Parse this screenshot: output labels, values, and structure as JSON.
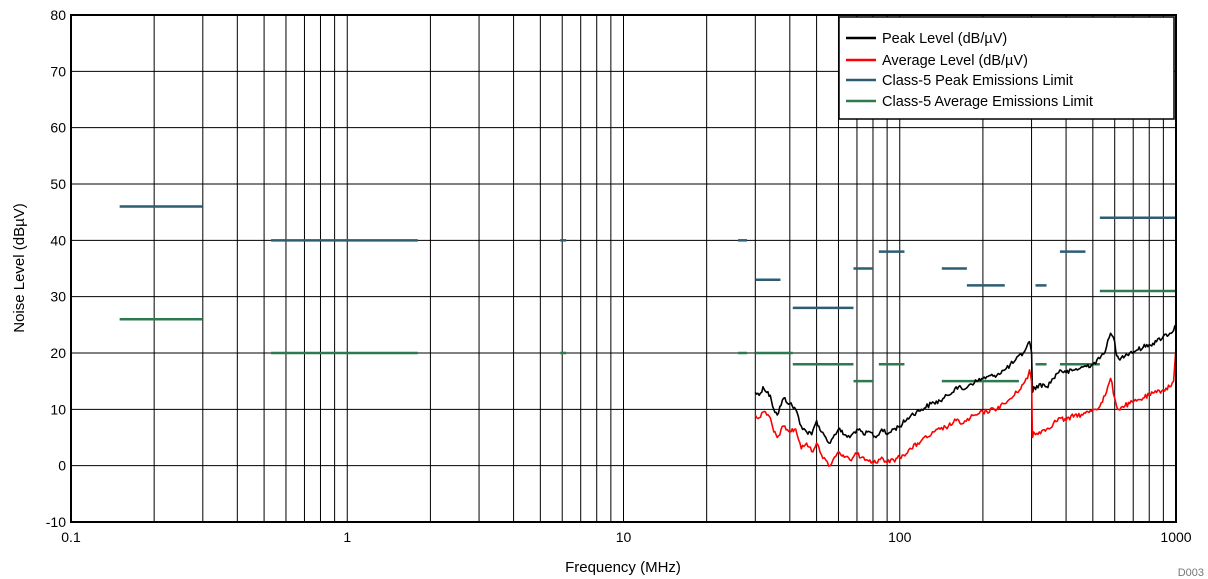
{
  "chart_data": {
    "type": "line",
    "xscale": "log",
    "xlim": [
      0.1,
      1000
    ],
    "ylim": [
      -10,
      80
    ],
    "x_ticks": [
      "0.1",
      "1",
      "10",
      "100",
      "1000"
    ],
    "y_ticks": [
      "-10",
      "0",
      "10",
      "20",
      "30",
      "40",
      "50",
      "60",
      "70",
      "80"
    ],
    "xlabel": "Frequency (MHz)",
    "ylabel": "Noise Level (dBµV)",
    "grid": true,
    "legend_position": "top-right",
    "figure_code": "D003",
    "series": [
      {
        "name": "Peak Level (dB/µV)",
        "color": "#000000",
        "x": [
          30,
          31,
          32,
          33,
          34,
          35,
          36,
          38,
          40,
          42,
          44,
          46,
          48,
          50,
          52,
          54,
          56,
          58,
          60,
          63,
          66,
          70,
          74,
          78,
          82,
          86,
          90,
          95,
          100,
          110,
          120,
          130,
          140,
          150,
          160,
          170,
          180,
          190,
          200,
          220,
          240,
          260,
          280,
          290,
          295,
          300,
          302,
          305,
          310,
          320,
          340,
          360,
          380,
          400,
          430,
          460,
          500,
          530,
          560,
          580,
          600,
          610,
          620,
          640,
          680,
          720,
          760,
          800,
          850,
          900,
          950,
          980,
          1000
        ],
        "values": [
          13,
          12.5,
          14,
          13,
          12.5,
          10,
          9,
          12,
          11,
          10,
          7,
          6,
          5.5,
          8,
          6,
          5,
          4,
          5.5,
          6.5,
          5.5,
          5,
          6.5,
          5.5,
          6,
          5,
          6.5,
          5.5,
          6.5,
          7,
          9,
          10,
          11,
          11.5,
          12.5,
          14,
          13.5,
          14.5,
          15,
          15.5,
          16,
          17,
          18.5,
          20,
          21.5,
          22,
          20,
          13,
          14,
          13.5,
          14.5,
          14,
          15.5,
          17,
          16.5,
          17,
          17.5,
          18,
          19,
          21,
          23.5,
          22,
          19.5,
          19,
          19.5,
          20,
          20.5,
          21,
          21.5,
          22,
          23,
          23.5,
          24,
          25
        ]
      },
      {
        "name": "Average Level (dB/µV)",
        "color": "#ff0000",
        "x": [
          30,
          31,
          32,
          33,
          34,
          35,
          36,
          38,
          40,
          42,
          44,
          46,
          48,
          50,
          52,
          54,
          56,
          58,
          60,
          63,
          66,
          70,
          74,
          78,
          82,
          86,
          90,
          95,
          100,
          110,
          120,
          130,
          140,
          150,
          160,
          170,
          180,
          190,
          200,
          220,
          240,
          260,
          280,
          290,
          295,
          300,
          302,
          305,
          310,
          320,
          340,
          360,
          380,
          400,
          430,
          460,
          500,
          530,
          560,
          580,
          600,
          610,
          620,
          640,
          680,
          720,
          760,
          800,
          850,
          900,
          950,
          980,
          1000
        ],
        "values": [
          9,
          8.5,
          9.5,
          9,
          8.5,
          6,
          5,
          7,
          6,
          6.5,
          3,
          4,
          2.5,
          4,
          2,
          1,
          0,
          1.5,
          2.5,
          1.5,
          1,
          2,
          1.5,
          1,
          0.5,
          1.5,
          0.5,
          1,
          1.5,
          3,
          4.5,
          5.5,
          6.5,
          7,
          8,
          7.5,
          8.5,
          9,
          9.5,
          10,
          11,
          12.5,
          14.5,
          15.5,
          17,
          15,
          5,
          6,
          5.5,
          6,
          6.5,
          7.5,
          8.5,
          8,
          9,
          9,
          10,
          10.5,
          13,
          15.5,
          12,
          10.5,
          10,
          10.5,
          11,
          11.5,
          12,
          12.5,
          13,
          13.5,
          14,
          15,
          21
        ]
      },
      {
        "name": "Class-5 Peak Emissions Limit",
        "color": "#2e5c73",
        "segments": [
          [
            0.15,
            0.3,
            46
          ],
          [
            0.53,
            1.8,
            40
          ],
          [
            5.9,
            6.2,
            40
          ],
          [
            26,
            28,
            40
          ],
          [
            30,
            37,
            33
          ],
          [
            41,
            68,
            28
          ],
          [
            68,
            80,
            35
          ],
          [
            84,
            104,
            38
          ],
          [
            142,
            175,
            35
          ],
          [
            175,
            240,
            32
          ],
          [
            310,
            340,
            32
          ],
          [
            380,
            470,
            38
          ],
          [
            530,
            1000,
            44
          ]
        ]
      },
      {
        "name": "Class-5 Average Emissions Limit",
        "color": "#2e7a50",
        "segments": [
          [
            0.15,
            0.3,
            26
          ],
          [
            0.53,
            1.8,
            20
          ],
          [
            5.9,
            6.2,
            20
          ],
          [
            26,
            28,
            20
          ],
          [
            30,
            41,
            20
          ],
          [
            41,
            68,
            18
          ],
          [
            68,
            80,
            15
          ],
          [
            84,
            104,
            18
          ],
          [
            142,
            270,
            15
          ],
          [
            310,
            340,
            18
          ],
          [
            380,
            530,
            18
          ],
          [
            530,
            1000,
            31
          ]
        ]
      }
    ]
  }
}
